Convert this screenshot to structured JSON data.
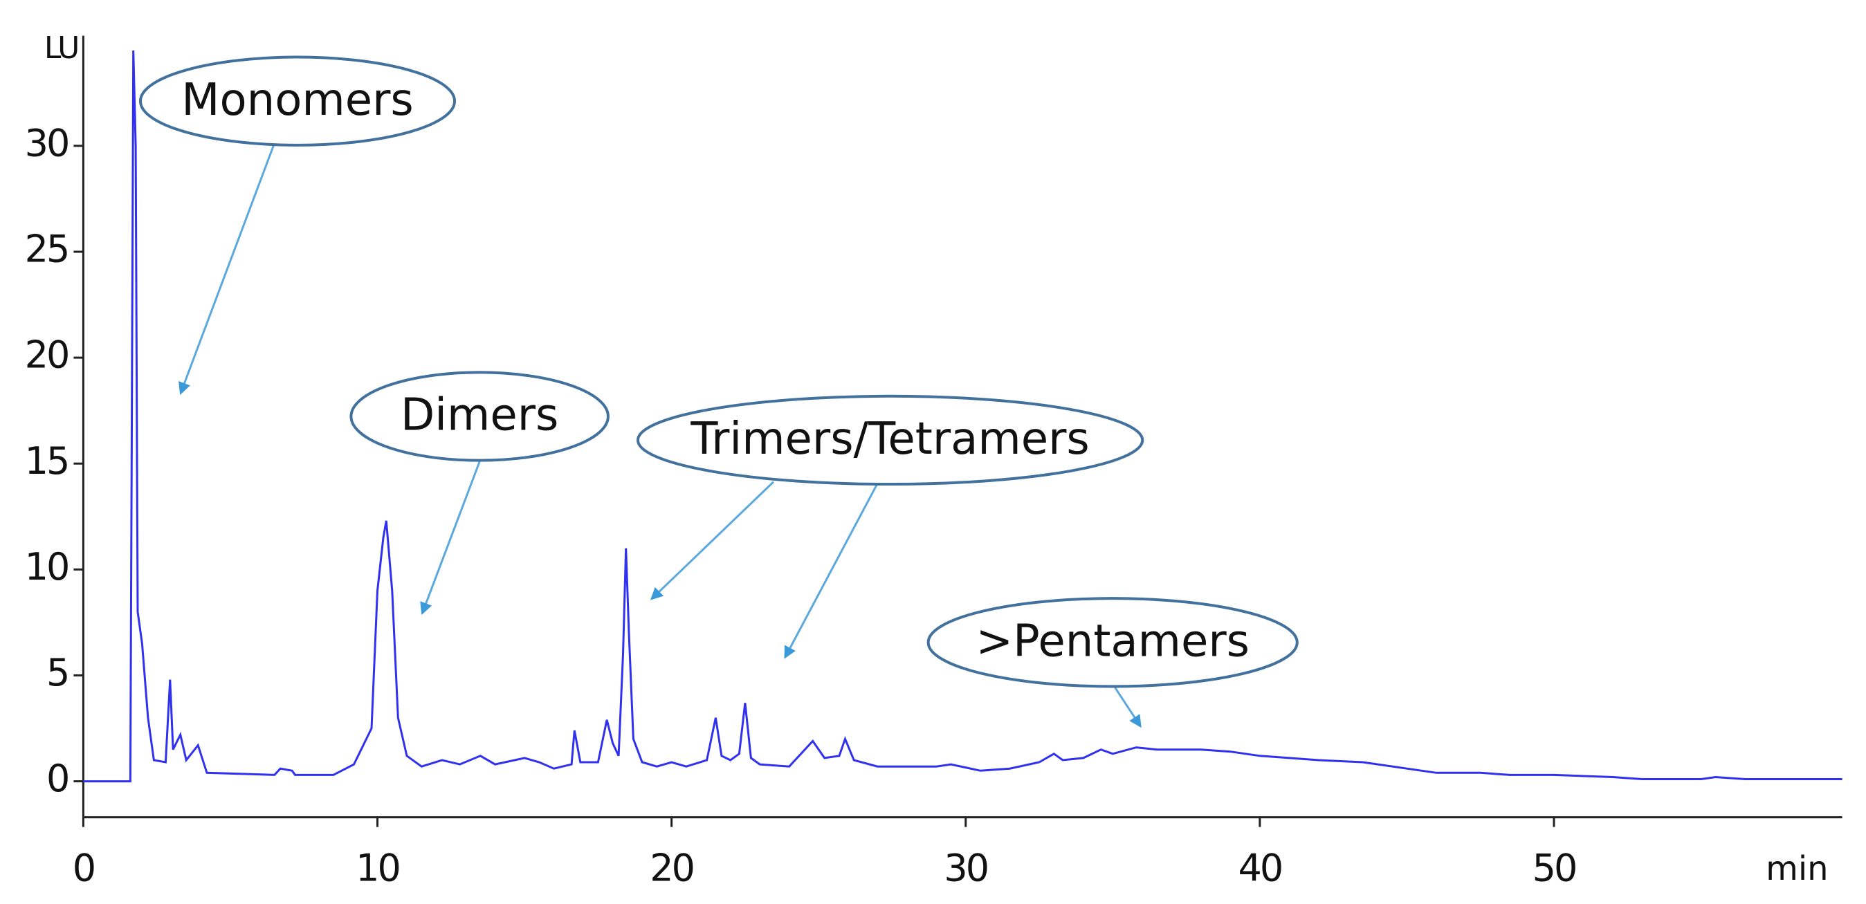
{
  "chart_data": {
    "type": "line",
    "x_label": "min",
    "y_label": "LU",
    "color": "#3030f0",
    "annotations": [
      "Monomers",
      "Dimers",
      "Trimers/Tetramers",
      ">Pentamers"
    ],
    "x": [
      0,
      1.6,
      1.7,
      1.78,
      1.85,
      2.0,
      2.2,
      2.4,
      2.8,
      2.95,
      3.05,
      3.3,
      3.5,
      3.9,
      4.2,
      6.5,
      6.7,
      7.1,
      7.2,
      8.5,
      9.2,
      9.8,
      10.0,
      10.2,
      10.3,
      10.5,
      10.7,
      11.0,
      11.5,
      12.2,
      12.8,
      13.5,
      14.0,
      15.0,
      15.5,
      16.0,
      16.6,
      16.7,
      16.9,
      17.5,
      17.8,
      18.0,
      18.2,
      18.35,
      18.45,
      18.55,
      18.7,
      19.0,
      19.5,
      20.0,
      20.5,
      21.2,
      21.5,
      21.7,
      22.0,
      22.3,
      22.5,
      22.7,
      23.0,
      24.0,
      24.8,
      25.2,
      25.7,
      25.9,
      26.2,
      27.0,
      28.0,
      29.0,
      29.5,
      30.5,
      31.5,
      32.5,
      33.0,
      33.3,
      34.0,
      34.6,
      35.0,
      35.8,
      36.5,
      37.0,
      38.0,
      39.0,
      40.0,
      42.0,
      43.5,
      45.0,
      46.0,
      47.5,
      48.5,
      50.0,
      52.0,
      53.0,
      55.0,
      55.5,
      56.5,
      59.8
    ],
    "values": [
      0,
      0,
      34.5,
      30,
      8,
      6.5,
      3,
      1,
      0.9,
      4.8,
      1.5,
      2.2,
      1.0,
      1.7,
      0.4,
      0.3,
      0.6,
      0.5,
      0.3,
      0.3,
      0.8,
      2.5,
      9,
      11.5,
      12.3,
      9,
      3,
      1.2,
      0.7,
      1.0,
      0.8,
      1.2,
      0.8,
      1.1,
      0.9,
      0.6,
      0.8,
      2.4,
      0.9,
      0.9,
      2.9,
      1.8,
      1.2,
      6,
      11,
      7,
      2,
      0.9,
      0.7,
      0.9,
      0.7,
      1.0,
      3.0,
      1.2,
      1.0,
      1.3,
      3.7,
      1.1,
      0.8,
      0.7,
      1.9,
      1.1,
      1.2,
      2.0,
      1.0,
      0.7,
      0.7,
      0.7,
      0.8,
      0.5,
      0.6,
      0.9,
      1.3,
      1.0,
      1.1,
      1.5,
      1.3,
      1.6,
      1.5,
      1.5,
      1.5,
      1.4,
      1.2,
      1.0,
      0.9,
      0.6,
      0.4,
      0.4,
      0.3,
      0.3,
      0.2,
      0.1,
      0.1,
      0.2,
      0.1,
      0.1
    ],
    "xlim": [
      0,
      59.8
    ],
    "ylim": [
      -1.7,
      35.2
    ],
    "xticks": [
      0,
      10,
      20,
      30,
      40,
      50
    ],
    "yticks": [
      0,
      5,
      10,
      15,
      20,
      25,
      30
    ]
  }
}
